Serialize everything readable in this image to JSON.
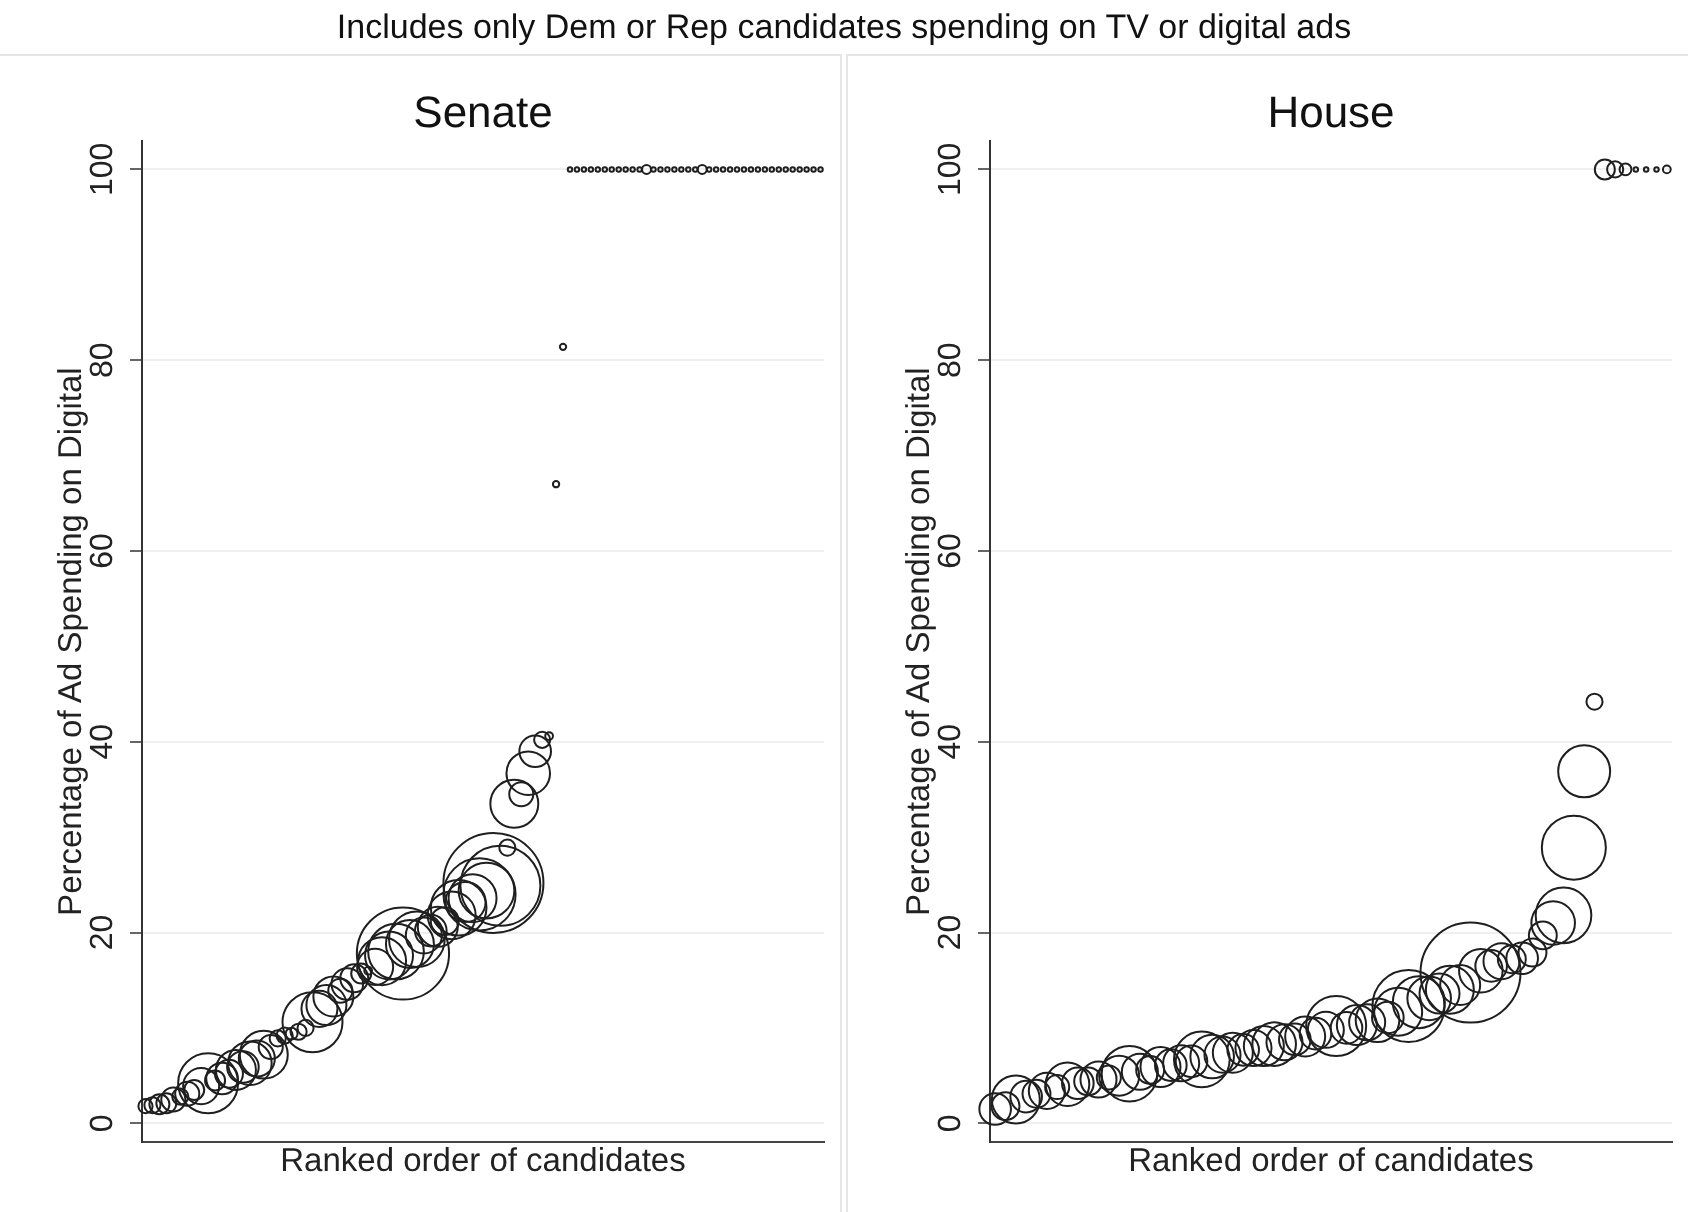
{
  "chart_data": [
    {
      "type": "bubble",
      "title": "Senate",
      "xlabel": "Ranked order of candidates",
      "ylabel": "Percentage of Ad Spending on Digital",
      "annotations": [
        "Includes only Dem or Rep candidates spending on TV or digital ads"
      ],
      "categories": [
        null,
        null,
        null,
        null,
        null,
        null,
        null,
        null,
        null,
        null,
        null,
        null,
        null,
        null,
        null,
        null,
        null,
        null,
        null,
        null,
        null,
        null,
        null,
        null,
        null,
        null,
        null,
        null,
        null,
        null,
        null,
        null,
        null,
        null,
        null,
        null,
        null,
        null,
        null,
        null,
        null,
        null,
        null,
        null,
        null,
        null,
        null,
        null,
        null,
        null,
        null,
        null,
        null,
        null,
        null,
        null,
        null,
        null,
        null,
        null,
        null,
        null,
        null,
        null,
        null,
        null,
        null,
        null,
        null,
        null,
        null,
        null,
        null,
        null,
        null,
        null,
        null,
        null,
        null,
        null,
        null,
        null,
        null,
        null,
        null,
        null,
        null,
        null,
        null,
        null,
        null,
        null,
        null,
        null,
        null,
        null,
        null,
        null
      ],
      "values": [
        1.8,
        1.9,
        2.0,
        2.1,
        2.5,
        2.8,
        3.1,
        3.5,
        3.9,
        4.2,
        4.5,
        4.7,
        5.2,
        5.6,
        5.9,
        6.3,
        6.8,
        7.2,
        8.0,
        8.9,
        9.2,
        9.4,
        9.6,
        10.0,
        10.6,
        12.0,
        12.4,
        13.3,
        13.9,
        14.6,
        15.2,
        15.7,
        16.0,
        16.4,
        17.0,
        17.6,
        18.0,
        17.8,
        18.8,
        19.3,
        19.7,
        20.2,
        20.6,
        21.2,
        21.8,
        22.6,
        23.2,
        23.6,
        24.0,
        24.4,
        25.2,
        24.9,
        28.9,
        33.5,
        34.5,
        36.7,
        39.0,
        40.2,
        40.6,
        67,
        81.4,
        100,
        100,
        100,
        100,
        100,
        100,
        100,
        100,
        100,
        100,
        100,
        100,
        100,
        100,
        100,
        100,
        100,
        100,
        100,
        100,
        100,
        100,
        100,
        100,
        100,
        100,
        100,
        100,
        100,
        100,
        100,
        100,
        100,
        100,
        100,
        100,
        100
      ],
      "sizes": [
        0.02,
        0.026,
        0.04,
        0.04,
        0.058,
        0.026,
        0.058,
        0.04,
        0.13,
        0.36,
        0.04,
        0.1,
        0.078,
        0.16,
        0.1,
        0.19,
        0.13,
        0.23,
        0.058,
        0.026,
        0.026,
        0.014,
        0.026,
        0.026,
        0.36,
        0.13,
        0.16,
        0.16,
        0.058,
        0.1,
        0.078,
        0.04,
        0.006,
        0.13,
        0.23,
        0.23,
        0.31,
        0.85,
        0.23,
        0.31,
        0.13,
        0.1,
        0.16,
        0.078,
        0.23,
        0.31,
        0.16,
        0.23,
        0.52,
        0.31,
        1,
        0.64,
        0.026,
        0.23,
        0.058,
        0.19,
        0.1,
        0.026,
        0.006,
        0.004,
        0.004,
        0.002,
        0.002,
        0.002,
        0.002,
        0.002,
        0.002,
        0.002,
        0.002,
        0.002,
        0.002,
        0.002,
        0.008,
        0.002,
        0.002,
        0.002,
        0.002,
        0.002,
        0.002,
        0.002,
        0.008,
        0.002,
        0.002,
        0.002,
        0.002,
        0.002,
        0.002,
        0.002,
        0.002,
        0.002,
        0.002,
        0.002,
        0.002,
        0.002,
        0.002,
        0.002,
        0.002,
        0.002
      ],
      "color": "#1f1f1f",
      "marker": "circle",
      "ylim": [
        -2,
        103
      ],
      "yticks": [
        0,
        20,
        40,
        60,
        80,
        100
      ],
      "grid": "y",
      "tick_labels": "y"
    },
    {
      "type": "bubble",
      "title": "House",
      "xlabel": "Ranked order of candidates",
      "ylabel": "Percentage of Ad Spending on Digital",
      "categories": [
        null,
        null,
        null,
        null,
        null,
        null,
        null,
        null,
        null,
        null,
        null,
        null,
        null,
        null,
        null,
        null,
        null,
        null,
        null,
        null,
        null,
        null,
        null,
        null,
        null,
        null,
        null,
        null,
        null,
        null,
        null,
        null,
        null,
        null,
        null,
        null,
        null,
        null,
        null,
        null,
        null,
        null,
        null,
        null,
        null,
        null,
        null,
        null,
        null,
        null,
        null,
        null,
        null,
        null,
        null,
        null,
        null,
        null,
        null,
        null,
        null,
        null,
        null,
        null,
        null,
        null
      ],
      "values": [
        1.5,
        1.8,
        2.5,
        2.8,
        3.1,
        3.4,
        3.8,
        4.1,
        4.2,
        4.4,
        4.6,
        4.8,
        5.0,
        5.2,
        5.4,
        5.6,
        5.9,
        6.1,
        6.3,
        6.5,
        6.7,
        7.0,
        7.2,
        7.4,
        7.7,
        7.9,
        8.1,
        8.3,
        8.5,
        8.8,
        9.1,
        9.4,
        9.8,
        10.2,
        10.0,
        10.3,
        10.6,
        10.8,
        11.1,
        11.7,
        12.3,
        12.7,
        13.1,
        13.6,
        14.0,
        14.5,
        15.8,
        16.0,
        16.5,
        17.0,
        17.2,
        17.3,
        17.9,
        19.7,
        21.0,
        21.8,
        28.9,
        36.9,
        44.2,
        100,
        100,
        100,
        100,
        100,
        100,
        100
      ],
      "sizes": [
        0.1,
        0.078,
        0.23,
        0.1,
        0.078,
        0.13,
        0.058,
        0.19,
        0.1,
        0.078,
        0.13,
        0.058,
        0.16,
        0.31,
        0.13,
        0.078,
        0.16,
        0.1,
        0.13,
        0.1,
        0.31,
        0.19,
        0.13,
        0.16,
        0.1,
        0.13,
        0.16,
        0.19,
        0.13,
        0.1,
        0.16,
        0.1,
        0.13,
        0.36,
        0.1,
        0.16,
        0.13,
        0.19,
        0.1,
        0.23,
        0.52,
        0.27,
        0.19,
        0.16,
        0.23,
        0.16,
        1,
        0.19,
        0.1,
        0.13,
        0.078,
        0.1,
        0.078,
        0.078,
        0.19,
        0.31,
        0.41,
        0.27,
        0.026,
        0.04,
        0.026,
        0.014,
        0.002,
        0.002,
        0.002,
        0.006
      ],
      "color": "#1f1f1f",
      "marker": "circle",
      "ylim": [
        -2,
        103
      ],
      "yticks": [
        0,
        20,
        40,
        60,
        80,
        100
      ],
      "grid": "y",
      "tick_labels": "y"
    }
  ]
}
